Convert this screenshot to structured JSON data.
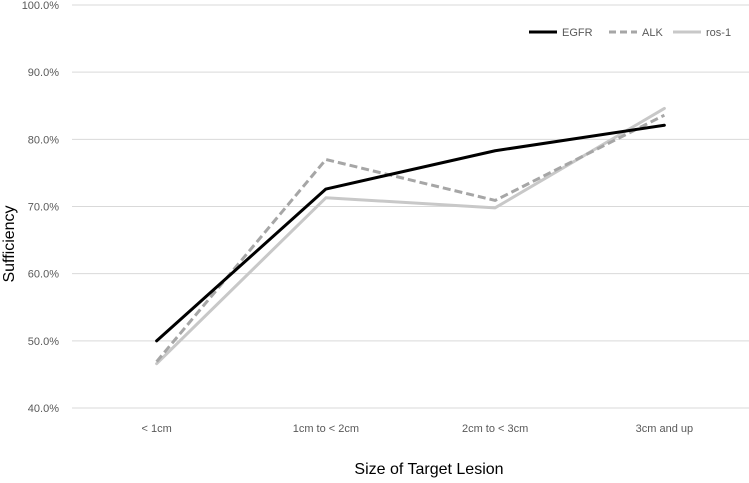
{
  "chart_data": {
    "type": "line",
    "title": "",
    "xlabel": "Size of Target Lesion",
    "ylabel": "Sufficiency",
    "categories": [
      "< 1cm",
      "1cm to < 2cm",
      "2cm to < 3cm",
      "3cm and up"
    ],
    "ylim": [
      40,
      100
    ],
    "yticks": [
      40,
      50,
      60,
      70,
      80,
      90,
      100
    ],
    "ytick_labels": [
      "40.0%",
      "50.0%",
      "60.0%",
      "70.0%",
      "80.0%",
      "90.0%",
      "100.0%"
    ],
    "grid": "horizontal",
    "legend_position": "top-right",
    "series": [
      {
        "name": "EGFR",
        "values": [
          50.0,
          72.6,
          78.3,
          82.1
        ],
        "color": "#000000",
        "dash": "solid"
      },
      {
        "name": "ALK",
        "values": [
          46.9,
          77.0,
          70.9,
          83.6
        ],
        "color": "#a6a6a6",
        "dash": "dashed"
      },
      {
        "name": "ros-1",
        "values": [
          46.6,
          71.3,
          69.8,
          84.6
        ],
        "color": "#c8c8c8",
        "dash": "solid"
      }
    ]
  }
}
